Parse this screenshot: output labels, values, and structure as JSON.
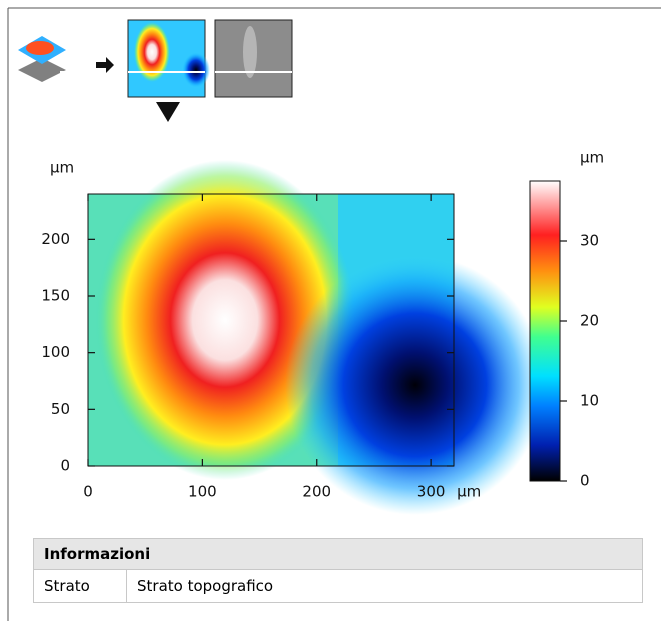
{
  "plot": {
    "y_unit": "µm",
    "x_unit": "µm",
    "xlim": [
      0,
      320
    ],
    "ylim": [
      0,
      240
    ],
    "xticks": [
      0,
      100,
      200,
      300
    ],
    "yticks": [
      0,
      50,
      100,
      150,
      200
    ]
  },
  "colorbar": {
    "unit": "µm",
    "lim": [
      0,
      37.5
    ],
    "ticks": [
      0,
      10,
      20,
      30
    ]
  },
  "table": {
    "header": "Informazioni",
    "rows": [
      [
        "Strato",
        "Strato topografico"
      ]
    ]
  }
}
